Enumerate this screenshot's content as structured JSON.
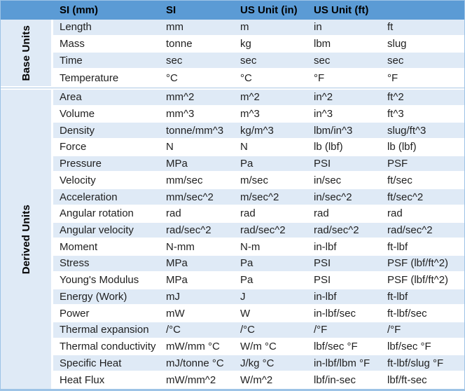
{
  "header": {
    "columns": [
      "SI (mm)",
      "SI",
      "US Unit (in)",
      "US Unit (ft)"
    ]
  },
  "sections": [
    {
      "label": "Base Units",
      "rows": [
        {
          "property": "Length",
          "values": [
            "mm",
            "m",
            "in",
            "ft"
          ]
        },
        {
          "property": "Mass",
          "values": [
            "tonne",
            "kg",
            "lbm",
            "slug"
          ]
        },
        {
          "property": "Time",
          "values": [
            "sec",
            "sec",
            "sec",
            "sec"
          ]
        },
        {
          "property": "Temperature",
          "values": [
            "°C",
            "°C",
            "°F",
            "°F"
          ]
        }
      ]
    },
    {
      "label": "Derived Units",
      "rows": [
        {
          "property": "Area",
          "values": [
            "mm^2",
            "m^2",
            "in^2",
            "ft^2"
          ]
        },
        {
          "property": "Volume",
          "values": [
            "mm^3",
            "m^3",
            "in^3",
            "ft^3"
          ]
        },
        {
          "property": "Density",
          "values": [
            "tonne/mm^3",
            "kg/m^3",
            "lbm/in^3",
            "slug/ft^3"
          ]
        },
        {
          "property": "Force",
          "values": [
            "N",
            "N",
            "lb (lbf)",
            "lb (lbf)"
          ]
        },
        {
          "property": "Pressure",
          "values": [
            "MPa",
            "Pa",
            "PSI",
            "PSF"
          ]
        },
        {
          "property": "Velocity",
          "values": [
            "mm/sec",
            "m/sec",
            "in/sec",
            "ft/sec"
          ]
        },
        {
          "property": "Acceleration",
          "values": [
            "mm/sec^2",
            "m/sec^2",
            "in/sec^2",
            "ft/sec^2"
          ]
        },
        {
          "property": "Angular rotation",
          "values": [
            "rad",
            "rad",
            "rad",
            "rad"
          ]
        },
        {
          "property": "Angular velocity",
          "values": [
            "rad/sec^2",
            "rad/sec^2",
            "rad/sec^2",
            "rad/sec^2"
          ]
        },
        {
          "property": "Moment",
          "values": [
            "N-mm",
            "N-m",
            "in-lbf",
            "ft-lbf"
          ]
        },
        {
          "property": "Stress",
          "values": [
            "MPa",
            "Pa",
            "PSI",
            "PSF (lbf/ft^2)"
          ]
        },
        {
          "property": "Young's Modulus",
          "values": [
            "MPa",
            "Pa",
            "PSI",
            "PSF (lbf/ft^2)"
          ]
        },
        {
          "property": "Energy (Work)",
          "values": [
            "mJ",
            "J",
            "in-lbf",
            "ft-lbf"
          ]
        },
        {
          "property": "Power",
          "values": [
            "mW",
            "W",
            "in-lbf/sec",
            "ft-lbf/sec"
          ]
        },
        {
          "property": "Thermal expansion",
          "values": [
            "/°C",
            "/°C",
            "/°F",
            "/°F"
          ]
        },
        {
          "property": "Thermal conductivity",
          "values": [
            "mW/mm °C",
            "W/m °C",
            "lbf/sec °F",
            "lbf/sec °F"
          ]
        },
        {
          "property": "Specific Heat",
          "values": [
            "mJ/tonne °C",
            "J/kg °C",
            "in-lbf/lbm °F",
            "ft-lbf/slug °F"
          ]
        },
        {
          "property": "Heat Flux",
          "values": [
            "mW/mm^2",
            "W/m^2",
            "lbf/in-sec",
            "lbf/ft-sec"
          ]
        }
      ]
    }
  ],
  "colors": {
    "header_bg": "#5b9bd5",
    "stripe_bg": "#dfeaf6",
    "outer_border": "#9dc3e6",
    "header_text": "#000000",
    "body_text": "#1f1f1f"
  }
}
